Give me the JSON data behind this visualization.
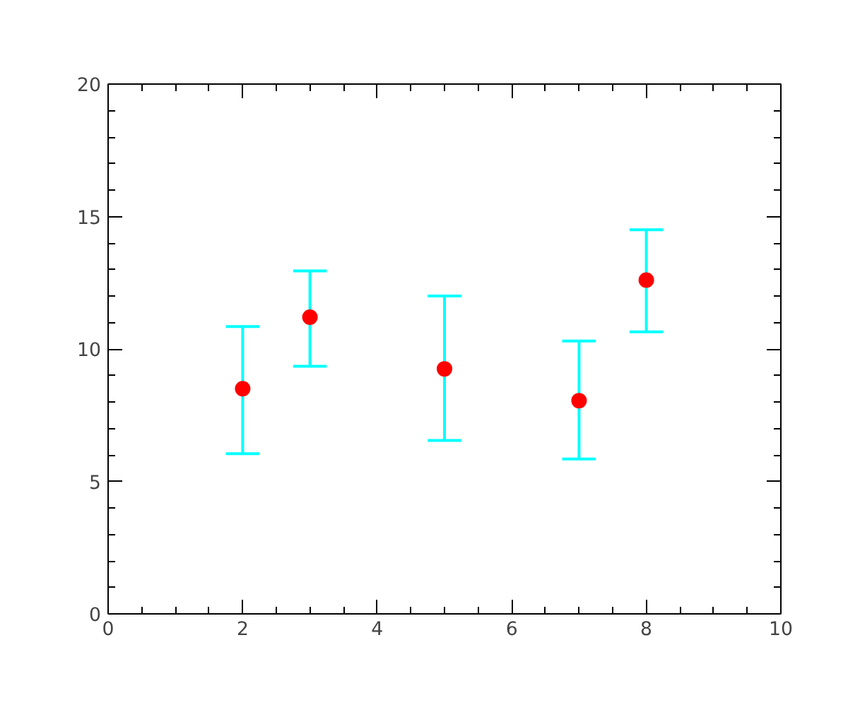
{
  "chart_data": {
    "type": "scatter",
    "x": [
      2,
      3,
      5,
      7,
      8
    ],
    "series": [
      {
        "color": "#ff0000",
        "values": [
          8.5,
          11.2,
          9.25,
          8.05,
          12.6
        ],
        "errors": [
          [
            6.05,
            10.85
          ],
          [
            9.35,
            12.95
          ],
          [
            6.55,
            12.0
          ],
          [
            5.85,
            10.3
          ],
          [
            10.65,
            14.5
          ]
        ]
      }
    ],
    "xlim": [
      0,
      10
    ],
    "xticks": [
      0,
      2,
      4,
      6,
      8,
      10
    ],
    "ylim": [
      0,
      20
    ],
    "yticks": [
      0,
      5,
      10,
      15,
      20
    ],
    "grid": false,
    "marker": "circle"
  }
}
